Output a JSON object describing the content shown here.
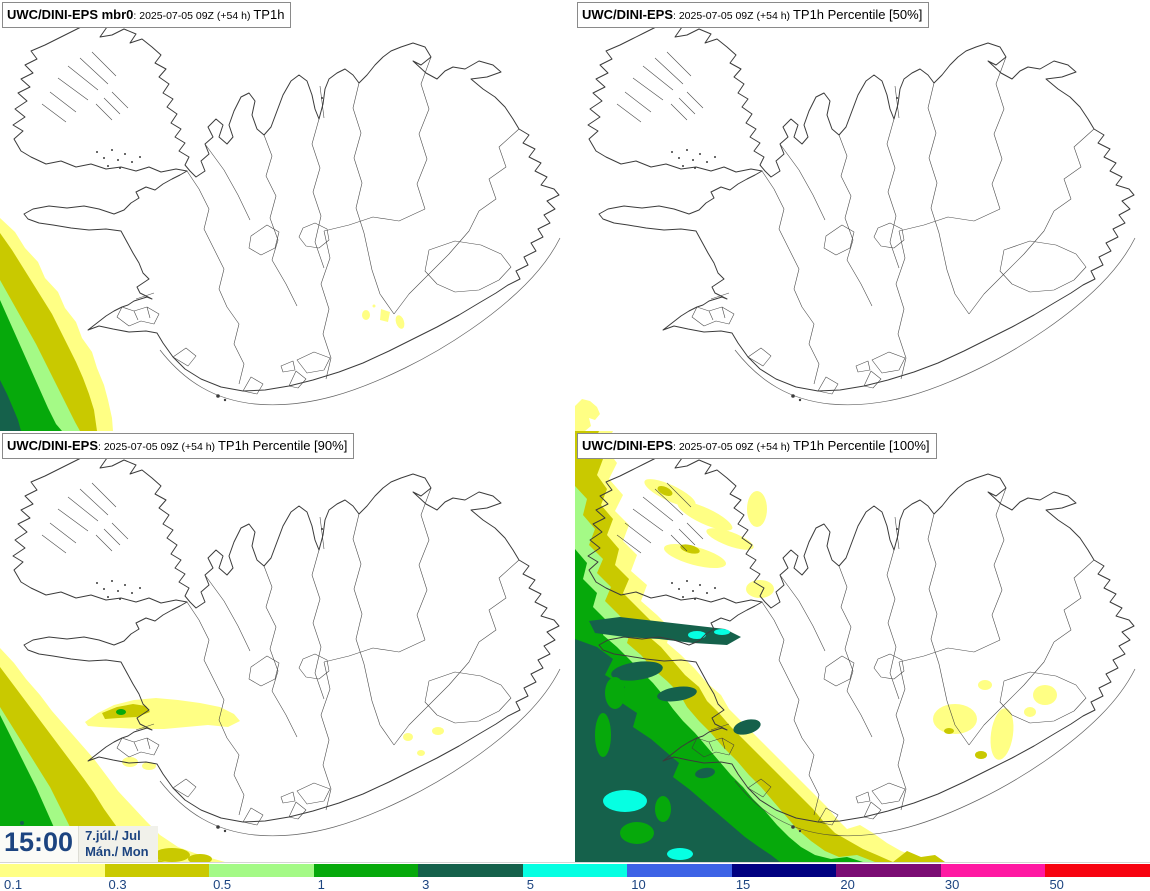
{
  "panels": [
    {
      "model": "UWC/DINI-EPS mbr0",
      "datetime": ": 2025-07-05 09Z (+54 h) ",
      "param": "TP1h"
    },
    {
      "model": "UWC/DINI-EPS",
      "datetime": ": 2025-07-05 09Z (+54 h) ",
      "param": "TP1h Percentile [50%]"
    },
    {
      "model": "UWC/DINI-EPS",
      "datetime": ": 2025-07-05 09Z (+54 h) ",
      "param": "TP1h Percentile [90%]"
    },
    {
      "model": "UWC/DINI-EPS",
      "datetime": ": 2025-07-05 09Z (+54 h) ",
      "param": "TP1h Percentile [100%]"
    }
  ],
  "clock": {
    "time": "15:00",
    "date": "7.júl./ Jul",
    "day": "Mán./ Mon"
  },
  "colorbar": {
    "labels": [
      "0.1",
      "0.3",
      "0.5",
      "1",
      "3",
      "5",
      "10",
      "15",
      "20",
      "30",
      "50"
    ],
    "colors": [
      "#ffff84",
      "#c9c900",
      "#a4fa86",
      "#06a90b",
      "#15614b",
      "#06ffe2",
      "#3d63e6",
      "#010181",
      "#7b0c74",
      "#ff18a2",
      "#f70310"
    ],
    "label_color": "#1c4480"
  },
  "map": {
    "line_color": "#3b3b3b"
  }
}
